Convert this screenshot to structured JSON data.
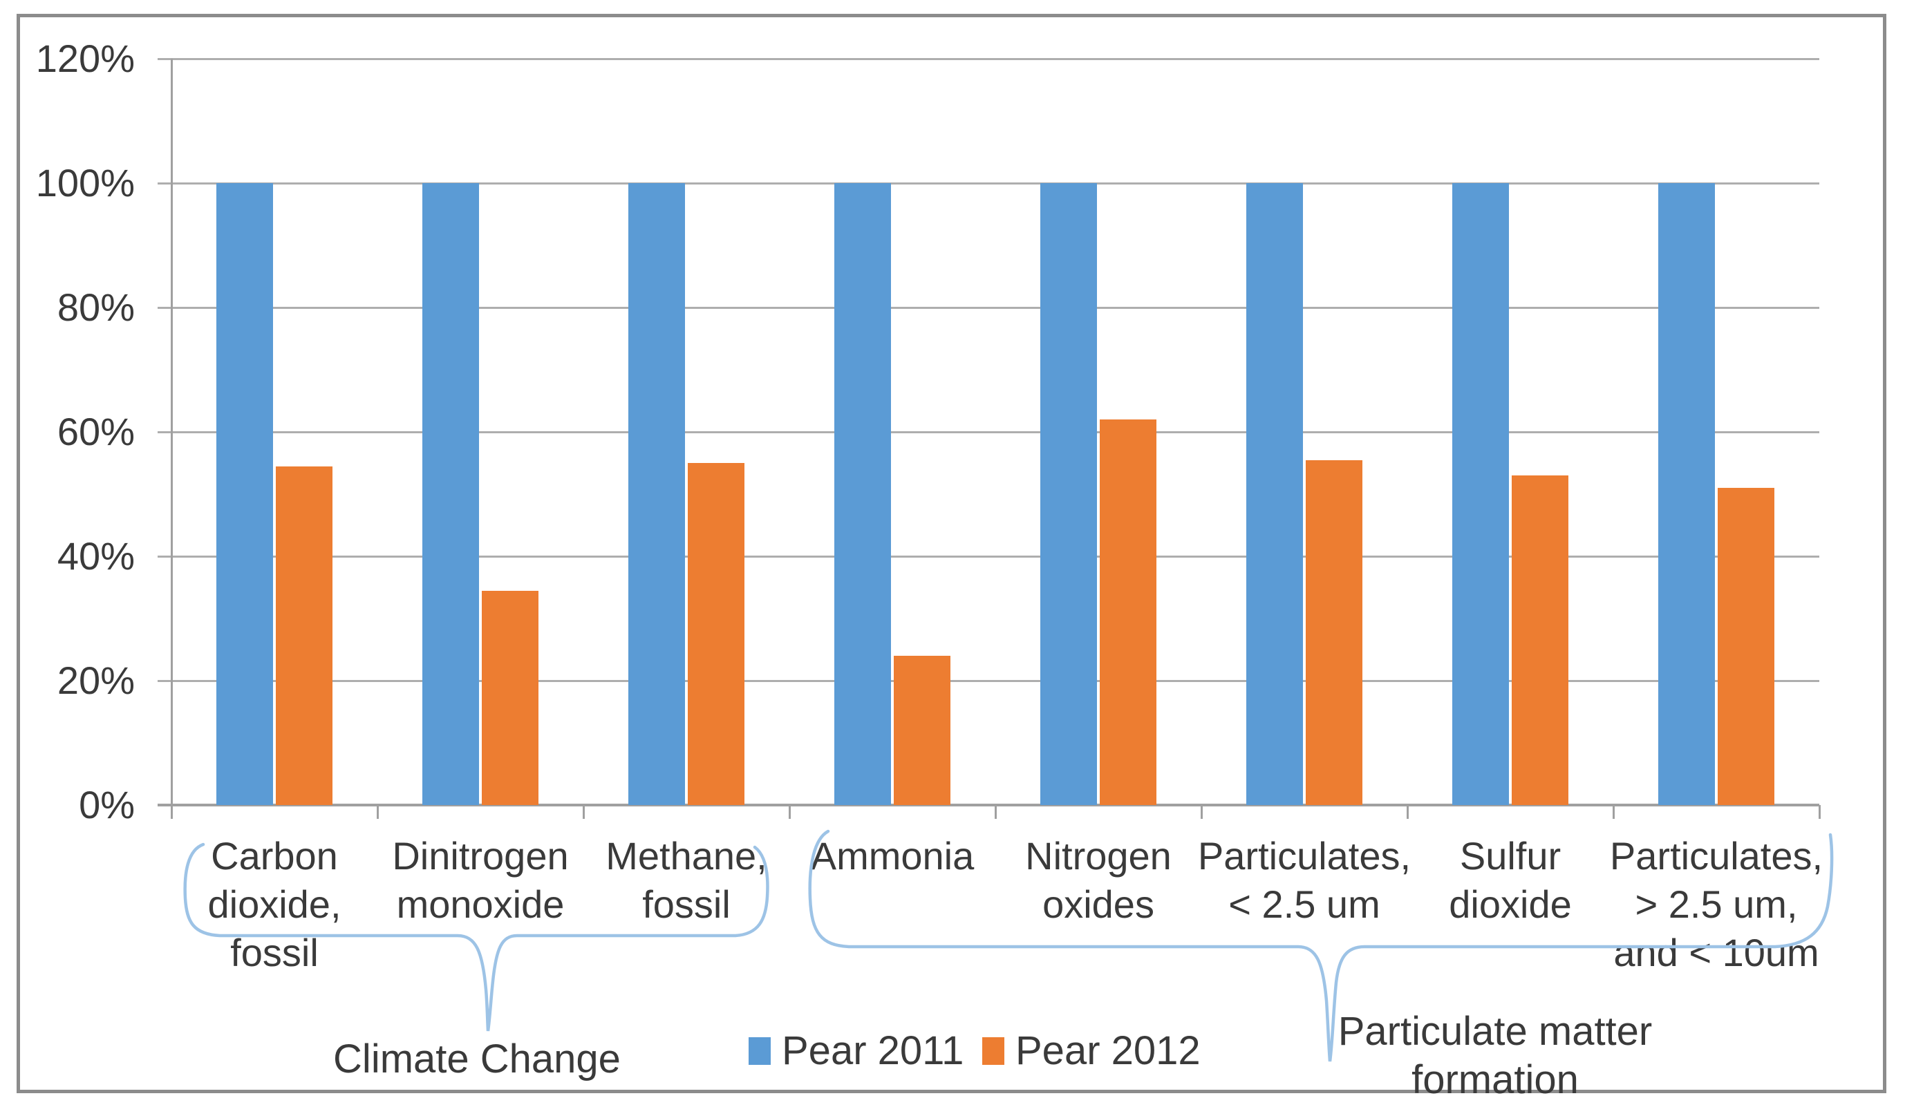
{
  "chart_data": {
    "type": "bar",
    "title": "",
    "xlabel": "",
    "ylabel": "",
    "ylim": [
      0,
      120
    ],
    "grid": true,
    "legend_position": "bottom-center",
    "y_ticks": [
      "0%",
      "20%",
      "40%",
      "60%",
      "80%",
      "100%",
      "120%"
    ],
    "categories": [
      {
        "label": "Carbon dioxide, fossil",
        "display": "Carbon\ndioxide,\nfossil"
      },
      {
        "label": "Dinitrogen monoxide",
        "display": "Dinitrogen\nmonoxide"
      },
      {
        "label": "Methane, fossil",
        "display": "Methane,\nfossil"
      },
      {
        "label": "Ammonia",
        "display": "Ammonia"
      },
      {
        "label": "Nitrogen oxides",
        "display": "Nitrogen\noxides"
      },
      {
        "label": "Particulates, < 2.5 um",
        "display": "Particulates,\n< 2.5 um"
      },
      {
        "label": "Sulfur dioxide",
        "display": "Sulfur\ndioxide"
      },
      {
        "label": "Particulates, > 2.5 um, and < 10um",
        "display": "Particulates,\n> 2.5 um,\nand < 10um"
      }
    ],
    "series": [
      {
        "name": "Pear 2011",
        "color": "#5B9BD5",
        "values": [
          100,
          100,
          100,
          100,
          100,
          100,
          100,
          100
        ]
      },
      {
        "name": "Pear 2012",
        "color": "#ED7D31",
        "values": [
          54.5,
          34.5,
          55,
          24,
          62,
          55.5,
          53,
          51
        ]
      }
    ],
    "annotations": [
      {
        "label": "Climate Change",
        "display": "Climate Change",
        "spans_categories": [
          "Carbon dioxide, fossil",
          "Dinitrogen monoxide",
          "Methane, fossil"
        ]
      },
      {
        "label": "Particulate matter formation",
        "display": "Particulate matter\nformation",
        "spans_categories": [
          "Ammonia",
          "Nitrogen oxides",
          "Particulates, < 2.5 um",
          "Sulfur dioxide",
          "Particulates, > 2.5 um, and < 10um"
        ]
      }
    ],
    "colors": {
      "bar_blue": "#5B9BD5",
      "bar_orange": "#ED7D31",
      "gridline": "#AEAEAE",
      "axis": "#A0A0A0",
      "brace": "#9DC3E6",
      "text": "#3A3A3A",
      "border": "#8C8C8C"
    }
  }
}
